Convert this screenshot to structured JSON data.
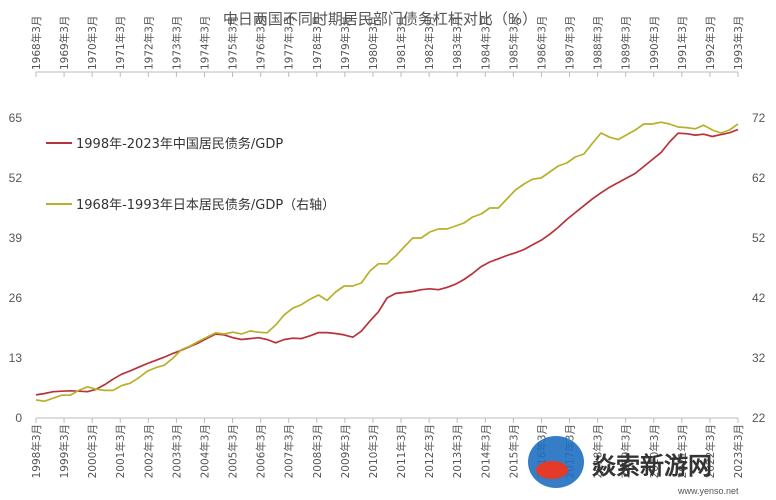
{
  "chart_data": {
    "type": "line",
    "title": "中日两国不同时期居民部门债务杠杆对比（%）",
    "top_axis_labels": [
      "1968年3月",
      "1969年3月",
      "1970年3月",
      "1971年3月",
      "1972年3月",
      "1973年3月",
      "1974年3月",
      "1975年3月",
      "1976年3月",
      "1977年3月",
      "1978年3月",
      "1979年3月",
      "1980年3月",
      "1981年3月",
      "1982年3月",
      "1983年3月",
      "1984年3月",
      "1985年3月",
      "1986年3月",
      "1987年3月",
      "1988年3月",
      "1989年3月",
      "1990年3月",
      "1991年3月",
      "1992年3月",
      "1993年3月"
    ],
    "bottom_axis_labels": [
      "1998年3月",
      "1999年3月",
      "2000年3月",
      "2001年3月",
      "2002年3月",
      "2003年3月",
      "2004年3月",
      "2005年3月",
      "2006年3月",
      "2007年3月",
      "2008年3月",
      "2009年3月",
      "2010年3月",
      "2011年3月",
      "2012年3月",
      "2013年3月",
      "2014年3月",
      "2015年3月",
      "2016年3月",
      "2017年3月",
      "2018年3月",
      "2019年3月",
      "2020年3月",
      "2021年3月",
      "2022年3月",
      "2023年3月"
    ],
    "y_left": {
      "ticks": [
        "0",
        "13",
        "26",
        "39",
        "52",
        "65"
      ],
      "ylim": [
        0,
        65
      ]
    },
    "y_right": {
      "ticks": [
        "22",
        "32",
        "42",
        "52",
        "62",
        "72"
      ],
      "ylim": [
        22,
        72
      ]
    },
    "series": [
      {
        "name": "1998年-2023年中国居民债务/GDP",
        "axis": "left",
        "color": "#b8323a",
        "values": [
          5.0,
          5.3,
          5.7,
          5.8,
          5.9,
          5.8,
          5.7,
          6.2,
          7.2,
          8.4,
          9.5,
          10.2,
          11.0,
          11.8,
          12.5,
          13.2,
          14.0,
          14.7,
          15.5,
          16.3,
          17.3,
          18.2,
          18.0,
          17.4,
          17.0,
          17.2,
          17.4,
          17.0,
          16.3,
          17.0,
          17.3,
          17.2,
          17.8,
          18.5,
          18.5,
          18.3,
          18.0,
          17.5,
          18.8,
          21.0,
          23.0,
          26.0,
          27.0,
          27.2,
          27.4,
          27.8,
          28.0,
          27.8,
          28.3,
          29.0,
          30.0,
          31.3,
          32.8,
          33.8,
          34.5,
          35.2,
          35.8,
          36.5,
          37.5,
          38.5,
          39.8,
          41.3,
          43.0,
          44.5,
          46.0,
          47.5,
          48.8,
          50.0,
          51.0,
          52.0,
          53.0,
          54.5,
          56.0,
          57.5,
          59.8,
          61.7,
          61.6,
          61.3,
          61.5,
          61.0,
          61.4,
          61.8,
          62.5
        ]
      },
      {
        "name": "1968年-1993年日本居民债务/GDP（右轴）",
        "axis": "right",
        "color": "#b8b028",
        "values": [
          25.0,
          24.8,
          25.3,
          25.8,
          25.8,
          26.6,
          27.2,
          26.8,
          26.6,
          26.6,
          27.4,
          27.8,
          28.7,
          29.8,
          30.4,
          30.8,
          32.0,
          33.4,
          34.0,
          34.8,
          35.5,
          36.2,
          36.0,
          36.3,
          36.0,
          36.5,
          36.3,
          36.2,
          37.5,
          39.2,
          40.3,
          40.9,
          41.8,
          42.5,
          41.6,
          43.0,
          44.0,
          44.0,
          44.5,
          46.5,
          47.7,
          47.7,
          49.0,
          50.5,
          52.0,
          52.0,
          53.0,
          53.5,
          53.5,
          54.0,
          54.5,
          55.5,
          56.0,
          57.0,
          57.0,
          58.5,
          60.0,
          61.0,
          61.8,
          62.0,
          63.0,
          64.0,
          64.5,
          65.5,
          66.0,
          67.8,
          69.5,
          68.8,
          68.4,
          69.2,
          70.0,
          71.0,
          71.0,
          71.3,
          71.0,
          70.5,
          70.4,
          70.2,
          70.8,
          70.0,
          69.5,
          70.0,
          71.0
        ]
      }
    ],
    "grid": false,
    "legend_position": "upper-left"
  },
  "watermark": {
    "brand": "焱索新游网",
    "url": "www.yenso.net"
  }
}
